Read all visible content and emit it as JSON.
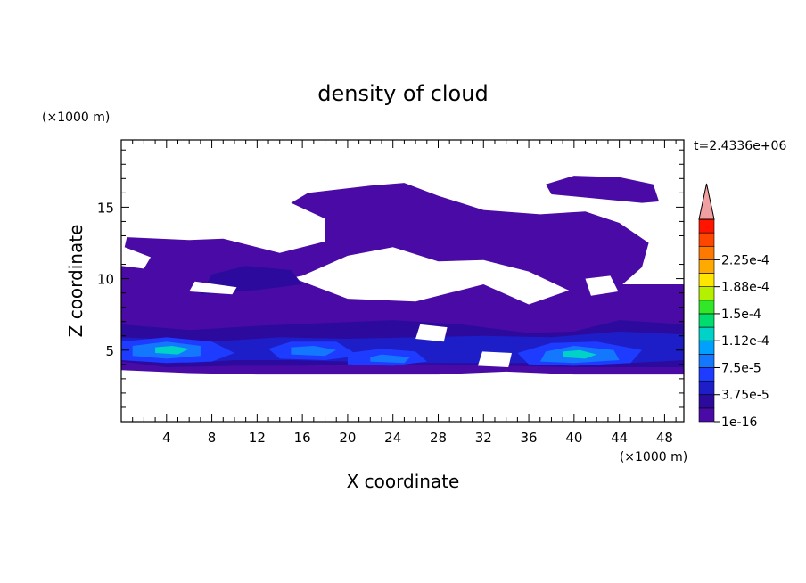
{
  "chart_data": {
    "type": "heatmap",
    "title": "density of cloud",
    "xlabel": "X coordinate",
    "ylabel": "Z coordinate",
    "x_unit": "(×1000 m)",
    "y_unit": "(×1000 m)",
    "time_label": "t=2.4336e+06",
    "xlim": [
      0,
      49.7
    ],
    "ylim": [
      0,
      19.7
    ],
    "x_ticks": [
      "4",
      "8",
      "12",
      "16",
      "20",
      "24",
      "28",
      "32",
      "36",
      "40",
      "44",
      "48"
    ],
    "y_ticks": [
      "5",
      "10",
      "15"
    ],
    "colorbar": {
      "labels": [
        "1e-16",
        "3.75e-5",
        "7.5e-5",
        "1.12e-4",
        "1.5e-4",
        "1.88e-4",
        "2.25e-4"
      ],
      "extend": "max",
      "colors": [
        "#4a0aa6",
        "#2d0a9e",
        "#1e1ec8",
        "#1e3cff",
        "#1478ff",
        "#00a0ff",
        "#00d2c8",
        "#00dc6e",
        "#32e628",
        "#b4f000",
        "#ffe600",
        "#ffaa00",
        "#ff7800",
        "#ff4600",
        "#ff1400",
        "#f0a0a0"
      ]
    },
    "regions": [
      {
        "level": 0,
        "desc": "lower cloud layer",
        "polygon": [
          [
            0,
            3.6
          ],
          [
            6,
            3.4
          ],
          [
            12,
            3.3
          ],
          [
            20,
            3.3
          ],
          [
            28,
            3.3
          ],
          [
            34,
            3.5
          ],
          [
            40,
            3.3
          ],
          [
            49.7,
            3.3
          ],
          [
            49.7,
            9.6
          ],
          [
            44,
            9.6
          ],
          [
            40,
            9.3
          ],
          [
            36,
            8.2
          ],
          [
            32,
            9.6
          ],
          [
            26,
            8.4
          ],
          [
            20,
            8.6
          ],
          [
            14,
            10.4
          ],
          [
            8,
            11.4
          ],
          [
            2,
            11.2
          ],
          [
            0,
            10.9
          ]
        ]
      },
      {
        "level": 0,
        "desc": "upper cloud arm",
        "polygon": [
          [
            0,
            11.2
          ],
          [
            0.5,
            12.9
          ],
          [
            6,
            12.7
          ],
          [
            9,
            12.8
          ],
          [
            14,
            11.8
          ],
          [
            18,
            12.6
          ],
          [
            18,
            14.2
          ],
          [
            15,
            15.3
          ],
          [
            16.5,
            16
          ],
          [
            22,
            16.5
          ],
          [
            25,
            16.7
          ],
          [
            28,
            15.8
          ],
          [
            32,
            14.8
          ],
          [
            37,
            14.5
          ],
          [
            41,
            14.7
          ],
          [
            44,
            13.9
          ],
          [
            46.6,
            12.5
          ],
          [
            46,
            10.8
          ],
          [
            44,
            9.4
          ],
          [
            40,
            9
          ],
          [
            36,
            10.5
          ],
          [
            32,
            11.3
          ],
          [
            28,
            11.2
          ],
          [
            24,
            12.2
          ],
          [
            20,
            11.6
          ],
          [
            16,
            10.2
          ],
          [
            12,
            9.6
          ],
          [
            6,
            10.6
          ],
          [
            2,
            10.9
          ]
        ]
      },
      {
        "level": 0,
        "desc": "top cloud strip",
        "polygon": [
          [
            37.5,
            16.6
          ],
          [
            40,
            17.2
          ],
          [
            44,
            17.1
          ],
          [
            47,
            16.6
          ],
          [
            47.5,
            15.4
          ],
          [
            46,
            15.3
          ],
          [
            42,
            15.6
          ],
          [
            38,
            15.9
          ]
        ]
      },
      {
        "level": 1,
        "desc": "dense band",
        "polygon": [
          [
            0,
            4.2
          ],
          [
            4,
            3.8
          ],
          [
            10,
            3.9
          ],
          [
            16,
            3.9
          ],
          [
            22,
            4.0
          ],
          [
            28,
            4.0
          ],
          [
            34,
            3.9
          ],
          [
            40,
            3.8
          ],
          [
            49.7,
            3.8
          ],
          [
            49.7,
            6.8
          ],
          [
            44,
            7.1
          ],
          [
            40,
            6.3
          ],
          [
            36,
            6.2
          ],
          [
            30,
            6.8
          ],
          [
            24,
            7.1
          ],
          [
            18,
            6.9
          ],
          [
            12,
            6.7
          ],
          [
            6,
            6.4
          ],
          [
            0,
            6.8
          ]
        ]
      },
      {
        "level": 1,
        "desc": "mid layer blob",
        "polygon": [
          [
            7,
            8.9
          ],
          [
            12,
            9.2
          ],
          [
            16,
            9.6
          ],
          [
            15,
            10.6
          ],
          [
            11,
            10.9
          ],
          [
            8,
            10.3
          ]
        ]
      },
      {
        "level": 2,
        "desc": "dark core",
        "polygon": [
          [
            0,
            4.4
          ],
          [
            6,
            4.1
          ],
          [
            10,
            4.3
          ],
          [
            15,
            4.3
          ],
          [
            20,
            4.2
          ],
          [
            26,
            4.1
          ],
          [
            32,
            4.1
          ],
          [
            38,
            4.1
          ],
          [
            45,
            4.1
          ],
          [
            49.7,
            4.3
          ],
          [
            49.7,
            6.1
          ],
          [
            44,
            6.3
          ],
          [
            38,
            5.9
          ],
          [
            32,
            6.0
          ],
          [
            26,
            5.9
          ],
          [
            20,
            5.8
          ],
          [
            14,
            5.9
          ],
          [
            8,
            5.6
          ],
          [
            0,
            5.9
          ]
        ]
      },
      {
        "level": 3,
        "desc": "cell A",
        "polygon": [
          [
            0,
            4.3
          ],
          [
            4,
            4.1
          ],
          [
            8,
            4.2
          ],
          [
            10,
            4.8
          ],
          [
            8,
            5.6
          ],
          [
            4,
            5.9
          ],
          [
            0,
            5.6
          ]
        ]
      },
      {
        "level": 4,
        "desc": "cell A core",
        "polygon": [
          [
            1,
            4.6
          ],
          [
            4,
            4.4
          ],
          [
            7,
            4.6
          ],
          [
            7,
            5.3
          ],
          [
            4,
            5.6
          ],
          [
            1,
            5.3
          ]
        ]
      },
      {
        "level": 6,
        "desc": "cell A peak",
        "polygon": [
          [
            3,
            4.8
          ],
          [
            5,
            4.7
          ],
          [
            6,
            5.1
          ],
          [
            4.5,
            5.3
          ],
          [
            3,
            5.2
          ]
        ]
      },
      {
        "level": 3,
        "desc": "cell B",
        "polygon": [
          [
            14,
            4.4
          ],
          [
            18,
            4.3
          ],
          [
            21,
            4.6
          ],
          [
            19,
            5.6
          ],
          [
            15,
            5.6
          ],
          [
            13,
            5.1
          ]
        ]
      },
      {
        "level": 4,
        "desc": "cell B core",
        "polygon": [
          [
            15,
            4.7
          ],
          [
            18,
            4.6
          ],
          [
            19,
            5
          ],
          [
            17,
            5.3
          ],
          [
            15,
            5.2
          ]
        ]
      },
      {
        "level": 3,
        "desc": "cell C",
        "polygon": [
          [
            20,
            4.0
          ],
          [
            24,
            3.9
          ],
          [
            27,
            4.2
          ],
          [
            26,
            4.9
          ],
          [
            23,
            5.1
          ],
          [
            20,
            4.8
          ]
        ]
      },
      {
        "level": 4,
        "desc": "cell C core",
        "polygon": [
          [
            22,
            4.2
          ],
          [
            25,
            4.1
          ],
          [
            25.5,
            4.5
          ],
          [
            23,
            4.7
          ],
          [
            22,
            4.5
          ]
        ]
      },
      {
        "level": 3,
        "desc": "cell D",
        "polygon": [
          [
            36,
            4.0
          ],
          [
            40,
            3.9
          ],
          [
            45,
            4.1
          ],
          [
            46,
            5.0
          ],
          [
            42,
            5.6
          ],
          [
            38,
            5.5
          ],
          [
            35,
            4.8
          ]
        ]
      },
      {
        "level": 4,
        "desc": "cell D core",
        "polygon": [
          [
            37,
            4.2
          ],
          [
            40,
            4.1
          ],
          [
            44,
            4.3
          ],
          [
            43.5,
            5.0
          ],
          [
            40,
            5.3
          ],
          [
            37.5,
            4.9
          ]
        ]
      },
      {
        "level": 6,
        "desc": "cell D peak",
        "polygon": [
          [
            39,
            4.5
          ],
          [
            41,
            4.4
          ],
          [
            42,
            4.7
          ],
          [
            40.5,
            5.0
          ],
          [
            39,
            4.9
          ]
        ]
      }
    ],
    "holes": [
      {
        "polygon": [
          [
            6,
            9.1
          ],
          [
            9.8,
            8.9
          ],
          [
            10.2,
            9.4
          ],
          [
            6.5,
            9.8
          ]
        ]
      },
      {
        "polygon": [
          [
            0,
            10.9
          ],
          [
            2,
            10.7
          ],
          [
            2.6,
            11.5
          ],
          [
            0.3,
            12.2
          ],
          [
            0,
            11.8
          ]
        ]
      },
      {
        "polygon": [
          [
            26,
            5.8
          ],
          [
            28.5,
            5.6
          ],
          [
            28.8,
            6.6
          ],
          [
            26.4,
            6.8
          ]
        ]
      },
      {
        "polygon": [
          [
            31.5,
            3.9
          ],
          [
            34.2,
            3.8
          ],
          [
            34.5,
            4.8
          ],
          [
            31.9,
            4.9
          ]
        ]
      },
      {
        "polygon": [
          [
            33.5,
            9.4
          ],
          [
            37,
            9.2
          ],
          [
            36.8,
            10.1
          ],
          [
            33.2,
            10.3
          ]
        ]
      },
      {
        "polygon": [
          [
            41.5,
            8.8
          ],
          [
            43.9,
            9.1
          ],
          [
            43.2,
            10.2
          ],
          [
            41,
            10
          ]
        ]
      }
    ]
  }
}
